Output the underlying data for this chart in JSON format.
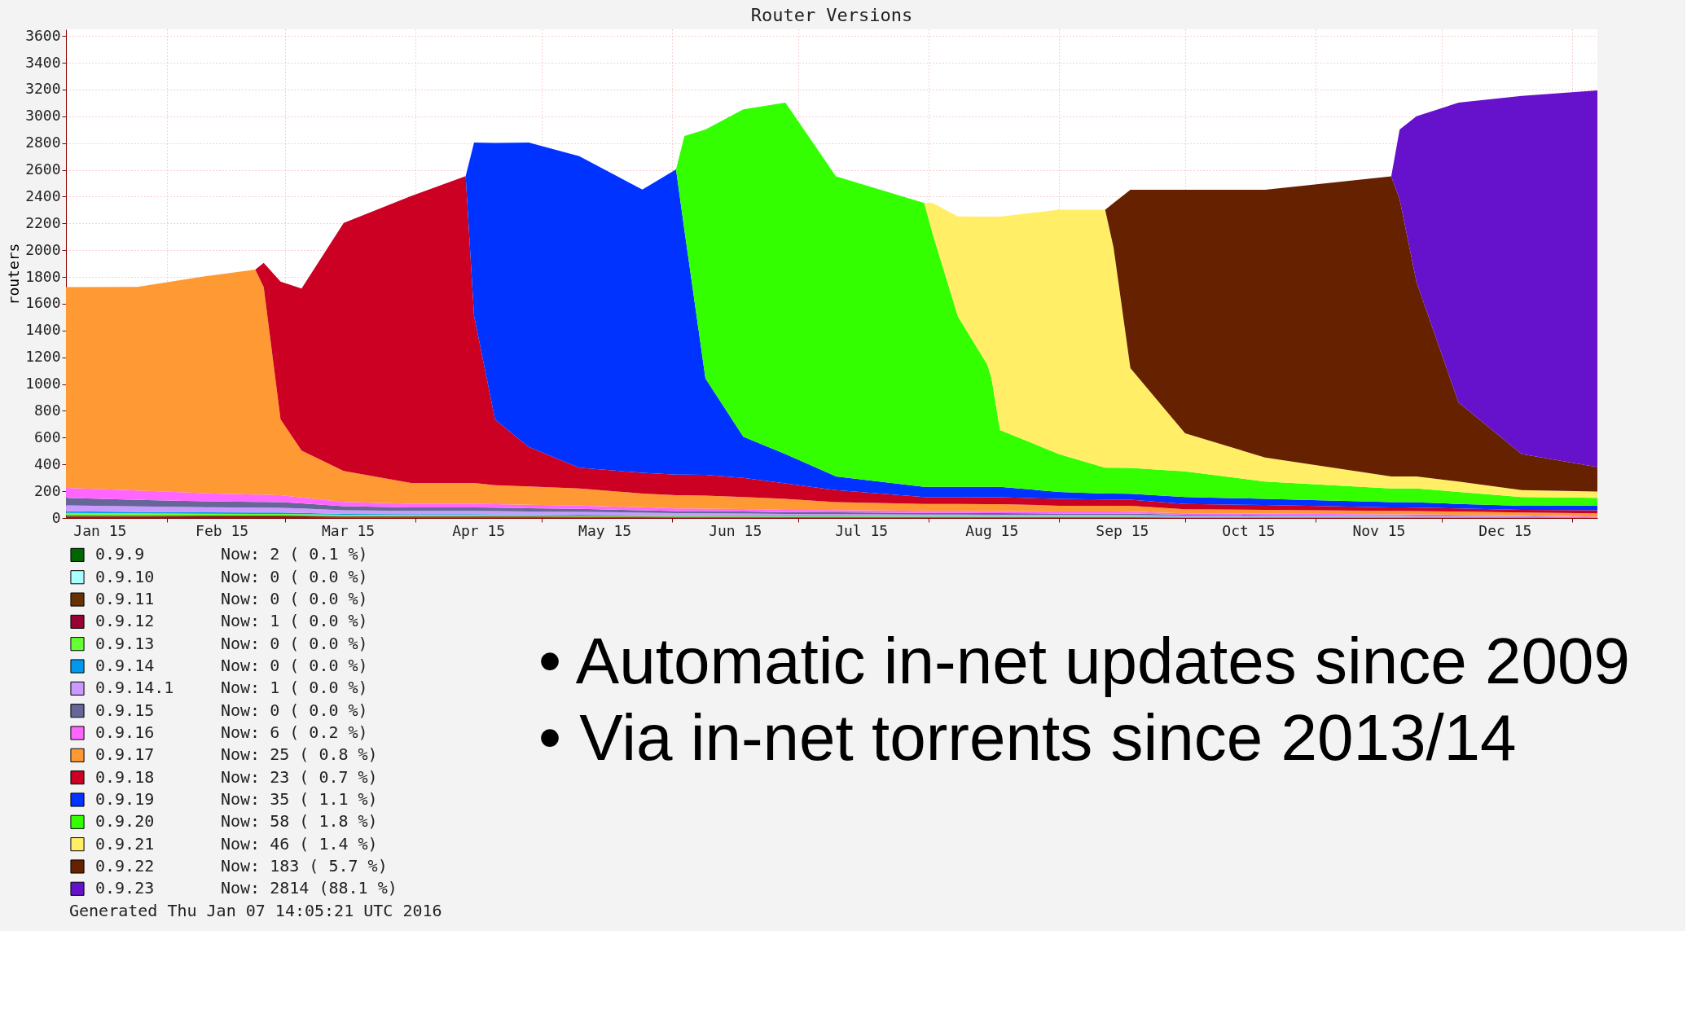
{
  "chart_data": {
    "type": "area",
    "stacked": true,
    "title": "Router Versions",
    "ylabel": "routers",
    "x": [
      "2015-01-08",
      "2015-01-25",
      "2015-02-10",
      "2015-02-22",
      "2015-02-24",
      "2015-02-28",
      "2015-03-05",
      "2015-03-15",
      "2015-03-31",
      "2015-04-13",
      "2015-04-15",
      "2015-04-20",
      "2015-04-28",
      "2015-05-10",
      "2015-05-25",
      "2015-06-02",
      "2015-06-04",
      "2015-06-09",
      "2015-06-18",
      "2015-06-28",
      "2015-07-10",
      "2015-07-31",
      "2015-08-02",
      "2015-08-08",
      "2015-08-15",
      "2015-08-16",
      "2015-08-18",
      "2015-09-01",
      "2015-09-12",
      "2015-09-14",
      "2015-09-18",
      "2015-10-01",
      "2015-10-20",
      "2015-11-19",
      "2015-11-21",
      "2015-11-25",
      "2015-12-05",
      "2015-12-20",
      "2016-01-07"
    ],
    "xlim": [
      "2015-01-08",
      "2016-01-07"
    ],
    "xticks": [
      {
        "value": "2015-01-16",
        "label": "Jan 15"
      },
      {
        "value": "2015-02-01",
        "label": null
      },
      {
        "value": "2015-02-14",
        "label": "Feb 15"
      },
      {
        "value": "2015-03-01",
        "label": null
      },
      {
        "value": "2015-03-16",
        "label": "Mar 15"
      },
      {
        "value": "2015-04-01",
        "label": null
      },
      {
        "value": "2015-04-16",
        "label": "Apr 15"
      },
      {
        "value": "2015-05-01",
        "label": null
      },
      {
        "value": "2015-05-16",
        "label": "May 15"
      },
      {
        "value": "2015-06-01",
        "label": null
      },
      {
        "value": "2015-06-16",
        "label": "Jun 15"
      },
      {
        "value": "2015-07-01",
        "label": null
      },
      {
        "value": "2015-07-16",
        "label": "Jul 15"
      },
      {
        "value": "2015-08-01",
        "label": null
      },
      {
        "value": "2015-08-16",
        "label": "Aug 15"
      },
      {
        "value": "2015-09-01",
        "label": null
      },
      {
        "value": "2015-09-16",
        "label": "Sep 15"
      },
      {
        "value": "2015-10-01",
        "label": null
      },
      {
        "value": "2015-10-16",
        "label": "Oct 15"
      },
      {
        "value": "2015-11-01",
        "label": null
      },
      {
        "value": "2015-11-16",
        "label": "Nov 15"
      },
      {
        "value": "2015-12-01",
        "label": null
      },
      {
        "value": "2015-12-16",
        "label": "Dec 15"
      },
      {
        "value": "2016-01-01",
        "label": null
      }
    ],
    "ylim": [
      0,
      3650
    ],
    "yticks": [
      0,
      200,
      400,
      600,
      800,
      1000,
      1200,
      1400,
      1600,
      1800,
      2000,
      2200,
      2400,
      2600,
      2800,
      3000,
      3200,
      3400,
      3600
    ],
    "grid": true,
    "legend": "bottom",
    "series": [
      {
        "name": "0.9.9",
        "color": "#006600",
        "values": [
          7,
          7,
          6,
          6,
          6,
          6,
          6,
          5,
          5,
          5,
          5,
          5,
          4,
          4,
          4,
          3,
          3,
          3,
          3,
          3,
          3,
          2,
          2,
          2,
          2,
          2,
          2,
          2,
          2,
          2,
          2,
          1,
          1,
          1,
          1,
          1,
          1,
          1,
          2
        ]
      },
      {
        "name": "0.9.10",
        "color": "#aaffff",
        "values": [
          null,
          null,
          null,
          null,
          null,
          null,
          null,
          null,
          null,
          null,
          null,
          null,
          null,
          null,
          null,
          null,
          null,
          null,
          null,
          null,
          null,
          null,
          null,
          null,
          null,
          null,
          null,
          null,
          null,
          null,
          null,
          null,
          null,
          null,
          null,
          null,
          null,
          null,
          null
        ]
      },
      {
        "name": "0.9.11",
        "color": "#663300",
        "values": [
          8,
          8,
          7,
          7,
          7,
          7,
          6,
          5,
          5,
          5,
          5,
          5,
          5,
          4,
          4,
          4,
          4,
          4,
          4,
          3,
          3,
          3,
          3,
          3,
          3,
          3,
          3,
          3,
          3,
          3,
          3,
          2,
          2,
          2,
          2,
          2,
          2,
          2,
          0
        ]
      },
      {
        "name": "0.9.12",
        "color": "#990033",
        "values": [
          7,
          5,
          5,
          5,
          5,
          5,
          5,
          4,
          4,
          4,
          4,
          3,
          3,
          3,
          2,
          2,
          2,
          2,
          2,
          1,
          1,
          1,
          1,
          1,
          1,
          1,
          1,
          1,
          1,
          1,
          1,
          1,
          1,
          1,
          1,
          1,
          1,
          1,
          1
        ]
      },
      {
        "name": "0.9.13",
        "color": "#66ff33",
        "values": [
          16,
          15,
          14,
          13,
          13,
          13,
          12,
          10,
          9,
          9,
          9,
          9,
          9,
          8,
          7,
          6,
          6,
          6,
          6,
          5,
          5,
          5,
          5,
          5,
          5,
          5,
          5,
          5,
          5,
          5,
          5,
          4,
          4,
          3,
          3,
          3,
          2,
          2,
          0
        ]
      },
      {
        "name": "0.9.14",
        "color": "#0099ee",
        "values": [
          12,
          11,
          10,
          10,
          10,
          10,
          9,
          7,
          6,
          6,
          6,
          6,
          6,
          6,
          5,
          5,
          5,
          5,
          4,
          4,
          4,
          3,
          3,
          3,
          3,
          3,
          3,
          3,
          3,
          3,
          2,
          2,
          2,
          2,
          2,
          1,
          1,
          1,
          0
        ]
      },
      {
        "name": "0.9.14.1",
        "color": "#cc99ff",
        "values": [
          45,
          40,
          38,
          36,
          36,
          35,
          33,
          27,
          24,
          24,
          24,
          24,
          22,
          21,
          18,
          16,
          16,
          15,
          15,
          14,
          13,
          12,
          12,
          12,
          11,
          11,
          11,
          10,
          10,
          10,
          10,
          8,
          7,
          6,
          6,
          6,
          5,
          4,
          1
        ]
      },
      {
        "name": "0.9.15",
        "color": "#666699",
        "values": [
          55,
          50,
          45,
          43,
          43,
          42,
          38,
          30,
          26,
          26,
          26,
          25,
          24,
          22,
          18,
          16,
          16,
          16,
          15,
          14,
          14,
          12,
          12,
          12,
          12,
          12,
          12,
          10,
          10,
          10,
          10,
          7,
          6,
          5,
          5,
          5,
          4,
          3,
          0
        ]
      },
      {
        "name": "0.9.16",
        "color": "#ff66ff",
        "values": [
          75,
          70,
          60,
          55,
          55,
          52,
          45,
          32,
          28,
          28,
          28,
          27,
          26,
          25,
          22,
          20,
          20,
          19,
          18,
          17,
          16,
          15,
          15,
          15,
          15,
          15,
          15,
          14,
          14,
          14,
          14,
          10,
          10,
          8,
          8,
          8,
          7,
          6,
          6
        ]
      },
      {
        "name": "0.9.17",
        "color": "#ff9933",
        "values": [
          1500,
          1520,
          1620,
          1680,
          1550,
          568,
          350,
          231,
          154,
          154,
          154,
          141,
          136,
          128,
          103,
          98,
          98,
          98,
          90,
          82,
          59,
          52,
          52,
          52,
          52,
          52,
          52,
          44,
          44,
          44,
          44,
          31,
          28,
          25,
          25,
          25,
          25,
          21,
          25
        ]
      },
      {
        "name": "0.9.18",
        "color": "#cc0022",
        "values": [
          0,
          0,
          0,
          0,
          180,
          1027,
          1210,
          1853,
          2143,
          2293,
          1247,
          489,
          296,
          155,
          154,
          154,
          154,
          154,
          142,
          116,
          90,
          51,
          51,
          51,
          51,
          51,
          51,
          51,
          46,
          46,
          46,
          39,
          36,
          26,
          26,
          26,
          23,
          20,
          23
        ]
      },
      {
        "name": "0.9.19",
        "color": "#0033ff",
        "values": [
          0,
          0,
          0,
          0,
          0,
          0,
          0,
          0,
          0,
          0,
          1296,
          2067,
          2273,
          2327,
          2116,
          2279,
          1826,
          720,
          308,
          219,
          103,
          77,
          77,
          77,
          77,
          77,
          77,
          52,
          44,
          44,
          44,
          51,
          46,
          39,
          39,
          39,
          34,
          31,
          35
        ]
      },
      {
        "name": "0.9.20",
        "color": "#33ff00",
        "values": [
          0,
          0,
          0,
          0,
          0,
          0,
          0,
          0,
          0,
          0,
          0,
          0,
          0,
          0,
          0,
          0,
          703,
          1859,
          2446,
          2624,
          2241,
          2119,
          1890,
          1273,
          913,
          810,
          425,
          283,
          193,
          193,
          193,
          193,
          129,
          103,
          103,
          103,
          90,
          64,
          58
        ]
      },
      {
        "name": "0.9.21",
        "color": "#ffee66",
        "values": [
          0,
          0,
          0,
          0,
          0,
          0,
          0,
          0,
          0,
          0,
          0,
          0,
          0,
          0,
          0,
          0,
          0,
          0,
          0,
          0,
          0,
          0,
          229,
          746,
          1106,
          1209,
          1594,
          1824,
          1927,
          1645,
          746,
          283,
          180,
          90,
          90,
          90,
          77,
          52,
          46
        ]
      },
      {
        "name": "0.9.22",
        "color": "#662200",
        "values": [
          0,
          0,
          0,
          0,
          0,
          0,
          0,
          0,
          0,
          0,
          0,
          0,
          0,
          0,
          0,
          0,
          0,
          0,
          0,
          0,
          0,
          0,
          0,
          0,
          0,
          0,
          0,
          0,
          0,
          332,
          1331,
          1820,
          2000,
          2241,
          2069,
          1452,
          591,
          270,
          183
        ]
      },
      {
        "name": "0.9.23",
        "color": "#6611cc",
        "values": [
          0,
          0,
          0,
          0,
          0,
          0,
          0,
          0,
          0,
          0,
          0,
          0,
          0,
          0,
          0,
          0,
          0,
          0,
          0,
          0,
          0,
          0,
          0,
          0,
          0,
          0,
          0,
          0,
          0,
          0,
          0,
          0,
          0,
          0,
          522,
          1239,
          2239,
          2674,
          2814
        ]
      }
    ],
    "annotations": [
      "Now: 2 ( 0.1 %)",
      "Now: 0 ( 0.0 %)",
      "Now: 0 ( 0.0 %)",
      "Now: 1 ( 0.0 %)",
      "Now: 0 ( 0.0 %)",
      "Now: 0 ( 0.0 %)",
      "Now: 1 ( 0.0 %)",
      "Now: 0 ( 0.0 %)",
      "Now: 6 ( 0.2 %)",
      "Now: 25 ( 0.8 %)",
      "Now: 23 ( 0.7 %)",
      "Now: 35 ( 1.1 %)",
      "Now: 58 ( 1.8 %)",
      "Now: 46 ( 1.4 %)",
      "Now: 183 ( 5.7 %)",
      "Now: 2814 (88.1 %)",
      "Generated Thu Jan 07 14:05:21 UTC 2016",
      "• Automatic in-net updates since 2009",
      "• Via in-net torrents since 2013/14"
    ]
  }
}
